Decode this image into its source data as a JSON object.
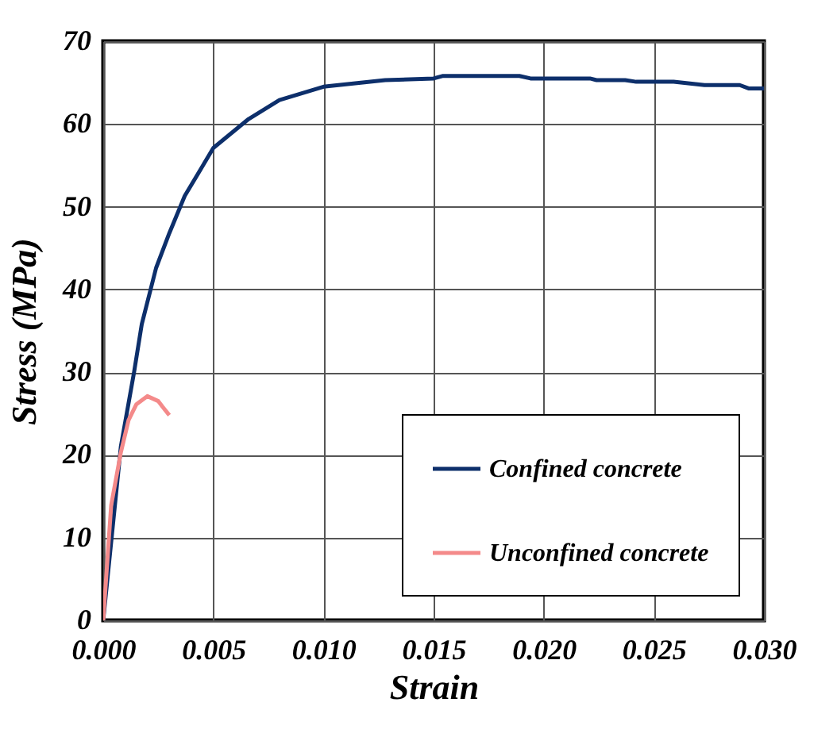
{
  "chart_data": {
    "type": "line",
    "xlabel": "Strain",
    "ylabel": "Stress (MPa)",
    "xlim": [
      0,
      0.03
    ],
    "xticks": [
      {
        "value": 0,
        "label": "0.000"
      },
      {
        "value": 0.005,
        "label": "0.005"
      },
      {
        "value": 0.01,
        "label": "0.010"
      },
      {
        "value": 0.015,
        "label": "0.015"
      },
      {
        "value": 0.02,
        "label": "0.020"
      },
      {
        "value": 0.025,
        "label": "0.025"
      },
      {
        "value": 0.03,
        "label": "0.030"
      }
    ],
    "ylim": [
      0,
      70
    ],
    "yticks": [
      0,
      10,
      20,
      30,
      40,
      50,
      60,
      70
    ],
    "grid": true,
    "legend": "bottom right",
    "line_style": "solid",
    "series": [
      {
        "name": "Confined concrete",
        "color": "#0d2f6b",
        "x": [
          0,
          0.0008,
          0.0014,
          0.00175,
          0.0024,
          0.003,
          0.0037,
          0.005,
          0.0066,
          0.008,
          0.01,
          0.0128,
          0.015,
          0.0154,
          0.0189,
          0.0194,
          0.0221,
          0.0224,
          0.0237,
          0.0242,
          0.0259,
          0.0273,
          0.0289,
          0.0293,
          0.03
        ],
        "values": [
          0,
          21,
          30,
          35.8,
          42.6,
          46.8,
          51.3,
          57.1,
          60.6,
          62.9,
          64.5,
          65.3,
          65.5,
          65.8,
          65.8,
          65.5,
          65.5,
          65.3,
          65.3,
          65.1,
          65.1,
          64.7,
          64.7,
          64.3,
          64.3
        ]
      },
      {
        "name": "Unconfined concrete",
        "color": "#f48a8a",
        "x": [
          0,
          0.00036,
          0.0008,
          0.00115,
          0.0015,
          0.002,
          0.0025,
          0.0027,
          0.003
        ],
        "values": [
          0,
          13.9,
          20.3,
          24.2,
          26.1,
          27.1,
          26.5,
          25.8,
          24.8
        ]
      }
    ]
  }
}
